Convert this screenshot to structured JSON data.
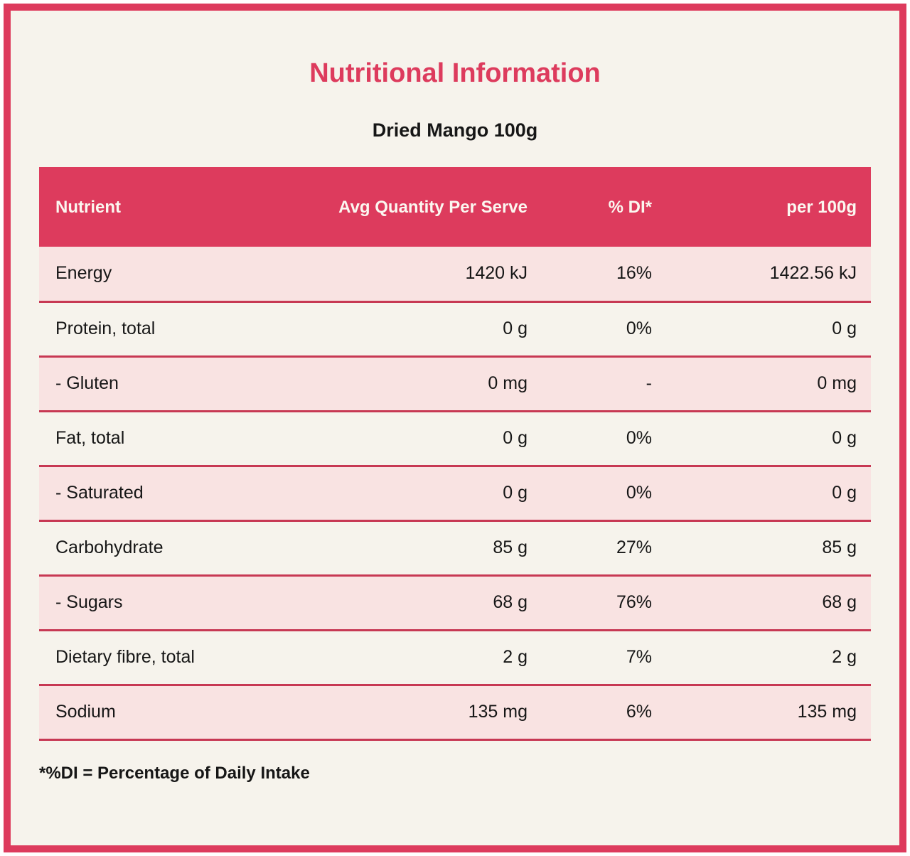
{
  "title": "Nutritional Information",
  "subtitle": "Dried Mango 100g",
  "footnote": "*%DI = Percentage of Daily Intake",
  "colors": {
    "accent": "#dd3b5d",
    "separator": "#c73853",
    "row_pink": "#f9e3e2",
    "background_cream": "#f6f3ec",
    "header_text": "#fbf7f0",
    "body_text": "#161616"
  },
  "table": {
    "columns": [
      "Nutrient",
      "Avg Quantity Per Serve",
      "% DI*",
      "per 100g"
    ],
    "rows": [
      [
        "Energy",
        "1420 kJ",
        "16%",
        "1422.56 kJ"
      ],
      [
        "Protein, total",
        "0 g",
        "0%",
        "0 g"
      ],
      [
        "- Gluten",
        "0 mg",
        "-",
        "0 mg"
      ],
      [
        "Fat, total",
        "0 g",
        "0%",
        "0 g"
      ],
      [
        "- Saturated",
        "0 g",
        "0%",
        "0 g"
      ],
      [
        "Carbohydrate",
        "85 g",
        "27%",
        "85 g"
      ],
      [
        "- Sugars",
        "68 g",
        "76%",
        "68 g"
      ],
      [
        "Dietary fibre, total",
        "2 g",
        "7%",
        "2 g"
      ],
      [
        "Sodium",
        "135 mg",
        "6%",
        "135 mg"
      ]
    ]
  }
}
